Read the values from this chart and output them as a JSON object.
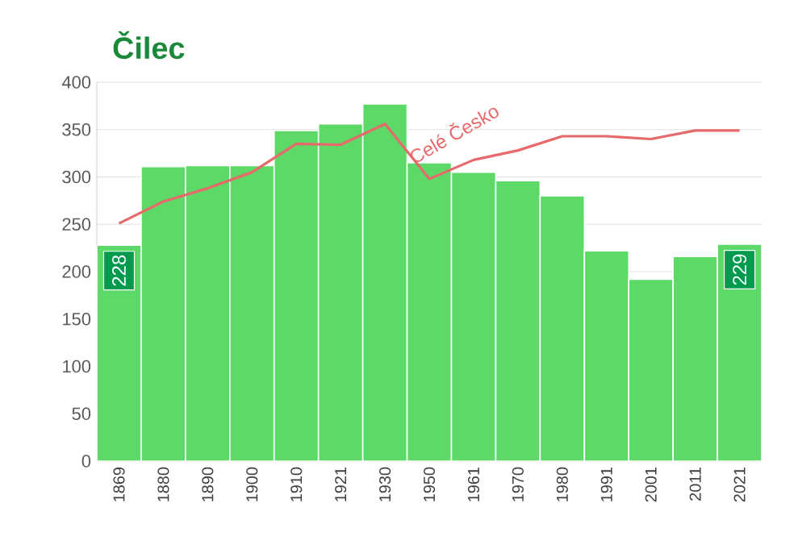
{
  "chart_data": {
    "type": "bar",
    "title": "Čilec",
    "categories": [
      "1869",
      "1880",
      "1890",
      "1900",
      "1910",
      "1921",
      "1930",
      "1950",
      "1961",
      "1970",
      "1980",
      "1991",
      "2001",
      "2011",
      "2021"
    ],
    "series": [
      {
        "color": "#5cd966",
        "values": [
          228,
          311,
          312,
          312,
          349,
          356,
          377,
          315,
          305,
          296,
          280,
          222,
          192,
          216,
          229
        ],
        "value_labels": [
          "228",
          null,
          null,
          null,
          null,
          null,
          null,
          null,
          null,
          null,
          null,
          null,
          null,
          null,
          "229"
        ]
      },
      {
        "type": "line",
        "name": "Celé Česko",
        "color": "#e8696b",
        "values": [
          251,
          274,
          288,
          305,
          335,
          334,
          356,
          298,
          318,
          328,
          343,
          343,
          340,
          349,
          349
        ]
      }
    ],
    "ylim": [
      0,
      400
    ],
    "yticks": [
      0,
      50,
      100,
      150,
      200,
      250,
      300,
      350,
      400
    ],
    "grid": "y",
    "legend": false,
    "marker": "none",
    "line_style": "solid"
  }
}
